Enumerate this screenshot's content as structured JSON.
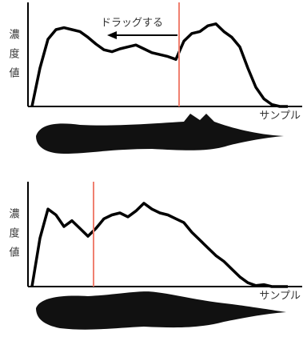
{
  "chart_data": [
    {
      "type": "line",
      "y_label": "濃度値",
      "x_label": "サンプル",
      "annotation": "ドラッグする",
      "values": [
        0,
        40,
        70,
        80,
        82,
        80,
        78,
        72,
        65,
        59,
        57,
        60,
        62,
        64,
        60,
        56,
        54,
        52,
        49,
        68,
        76,
        78,
        84,
        86,
        78,
        72,
        62,
        40,
        20,
        8,
        2,
        0,
        0
      ],
      "ylim": [
        0,
        100
      ],
      "color": "#000000",
      "marker": 18.4,
      "marker_color": "#f08070"
    },
    {
      "type": "line",
      "y_label": "濃度値",
      "x_label": "サンプル",
      "values": [
        0,
        50,
        80,
        74,
        62,
        68,
        60,
        52,
        60,
        70,
        74,
        76,
        72,
        78,
        86,
        80,
        76,
        74,
        70,
        66,
        56,
        48,
        40,
        32,
        26,
        18,
        10,
        4,
        1,
        2,
        0,
        0,
        0
      ],
      "ylim": [
        0,
        100
      ],
      "color": "#000000",
      "marker": 7.7,
      "marker_color": "#f08070"
    }
  ]
}
